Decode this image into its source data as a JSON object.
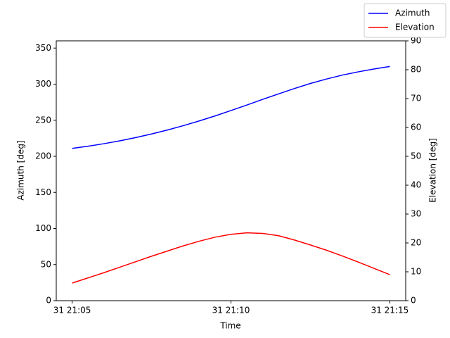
{
  "chart_data": {
    "type": "line",
    "xlabel": "Time",
    "ylabel": "Azimuth [deg]",
    "y2label": "Elevation [deg]",
    "x": [
      5,
      5.5,
      6,
      6.5,
      7,
      7.5,
      8,
      8.5,
      9,
      9.5,
      10,
      10.5,
      11,
      11.5,
      12,
      12.5,
      13,
      13.5,
      14,
      14.5,
      15
    ],
    "series": [
      {
        "name": "Azimuth",
        "color": "#0000ff",
        "values": [
          211,
          214,
          217.5,
          221.5,
          226,
          231,
          236.5,
          242.5,
          249,
          256,
          263.5,
          271,
          279,
          286.5,
          294,
          301,
          307,
          312.5,
          317,
          321,
          324.5
        ]
      },
      {
        "name": "Elevation",
        "color": "#ff0000",
        "axis": "y2",
        "values": [
          6.1,
          7.9,
          9.7,
          11.6,
          13.5,
          15.4,
          17.2,
          19.0,
          20.6,
          22.0,
          23.0,
          23.5,
          23.3,
          22.5,
          21.0,
          19.3,
          17.5,
          15.5,
          13.4,
          11.2,
          9.0
        ]
      }
    ],
    "xlim": [
      4.5,
      15.5
    ],
    "xticks": [
      {
        "value": 5,
        "label": "31 21:05"
      },
      {
        "value": 10,
        "label": "31 21:10"
      },
      {
        "value": 15,
        "label": "31 21:15"
      }
    ],
    "ylim": [
      0,
      360
    ],
    "yticks": [
      0,
      50,
      100,
      150,
      200,
      250,
      300,
      350
    ],
    "y2lim": [
      0,
      90
    ],
    "y2ticks": [
      0,
      10,
      20,
      30,
      40,
      50,
      60,
      70,
      80,
      90
    ],
    "legend": "upper right"
  }
}
